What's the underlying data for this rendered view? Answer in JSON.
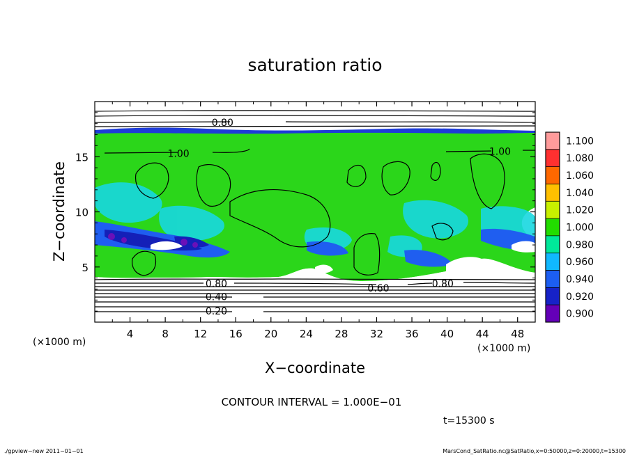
{
  "chart_data": {
    "type": "heatmap",
    "title": "saturation ratio",
    "xlabel": "X−coordinate",
    "ylabel": "Z−coordinate",
    "x_unit_left": "(×1000 m)",
    "x_unit_right": "(×1000 m)",
    "xlim": [
      0,
      50
    ],
    "ylim": [
      0,
      20
    ],
    "x_ticks": [
      4,
      8,
      12,
      16,
      20,
      24,
      28,
      32,
      36,
      40,
      44,
      48
    ],
    "y_ticks": [
      5,
      10,
      15
    ],
    "colorbar": {
      "levels": [
        1.1,
        1.08,
        1.06,
        1.04,
        1.02,
        1.0,
        0.98,
        0.96,
        0.94,
        0.92,
        0.9
      ],
      "labels": [
        "1.100",
        "1.080",
        "1.060",
        "1.040",
        "1.020",
        "1.000",
        "0.980",
        "0.960",
        "0.940",
        "0.920",
        "0.900"
      ],
      "colors": [
        "#ff9b9b",
        "#ff3030",
        "#ff6800",
        "#ffc000",
        "#c8f000",
        "#22dd00",
        "#00e89a",
        "#10b8ff",
        "#1c5ef2",
        "#1622c8",
        "#6400b8"
      ]
    },
    "contour_interval_text": "CONTOUR INTERVAL = 1.000E−01",
    "contour_labels": [
      {
        "text": "0.80",
        "x": 14.5,
        "z": 18.1
      },
      {
        "text": "1.00",
        "x": 9.5,
        "z": 15.3
      },
      {
        "text": "1.00",
        "x": 46.0,
        "z": 15.5
      },
      {
        "text": "0.80",
        "x": 13.8,
        "z": 3.5
      },
      {
        "text": "0.60",
        "x": 32.2,
        "z": 3.1
      },
      {
        "text": "0.80",
        "x": 39.5,
        "z": 3.5
      },
      {
        "text": "0.40",
        "x": 13.8,
        "z": 2.3
      },
      {
        "text": "0.20",
        "x": 13.8,
        "z": 1.0
      }
    ],
    "time_text": "t=15300 s"
  },
  "footer": {
    "left": "./gpview−new   2011−01−01",
    "right": "MarsCond_SatRatio.nc@SatRatio,x=0:50000,z=0:20000,t=15300"
  }
}
